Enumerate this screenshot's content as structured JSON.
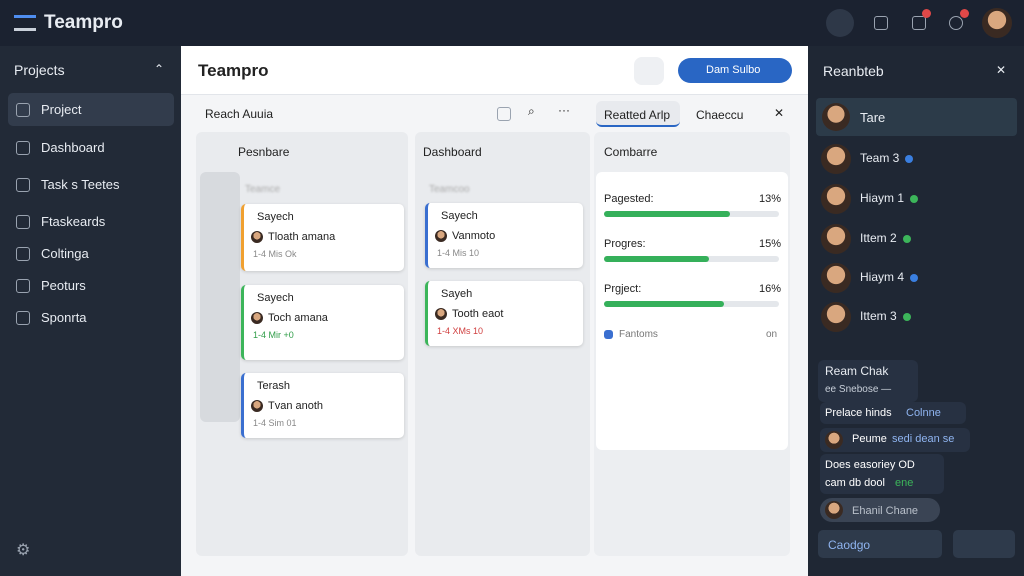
{
  "top_bar": {
    "brand": "Teampro"
  },
  "sidebar": {
    "title": "Projects",
    "items": [
      "Project",
      "Dashboard",
      "Task s Teetes",
      "Ftaskeards",
      "Coltinga",
      "Peoturs",
      "Sponrta"
    ]
  },
  "main": {
    "title": "Teampro",
    "action_button": "Dam Sulbo",
    "subtitle": "Reach Auuia",
    "board": {
      "columns": [
        {
          "title": "Pesnbare",
          "header": "Teamce",
          "cards": [
            {
              "title": "Sayech",
              "assignee": "Tloath amana",
              "meta": "1-4 Mis Ok"
            },
            {
              "title": "Sayech",
              "assignee": "Toch amana",
              "meta": "1-4 Mir +0"
            },
            {
              "title": "Terash",
              "assignee": "Tvan anoth",
              "meta": "1-4 Sim 01"
            }
          ]
        },
        {
          "title": "Dashboard",
          "header": "Teamcoo",
          "cards": [
            {
              "title": "Sayech",
              "assignee": "Vanmoto",
              "meta": "1-4 Mis 10"
            },
            {
              "title": "Sayeh",
              "assignee": "Tooth eaot",
              "meta": "1-4 XMs 10"
            }
          ]
        }
      ]
    },
    "side_tabs": [
      "Reatted Arlp",
      "Chaeccu"
    ],
    "progress": {
      "title": "Combarre",
      "rows": [
        {
          "label": "Pagested:",
          "value": "13%"
        },
        {
          "label": "Progres:",
          "value": "15%"
        },
        {
          "label": "Prgject:",
          "value": "16%"
        }
      ],
      "legend": "Fantoms",
      "legend_value": "on"
    }
  },
  "right_panel": {
    "title": "Reanbteb",
    "team": "Tare",
    "members": [
      "Team 3",
      "Hiaym 1",
      "Ittem 2",
      "Hiaym 4",
      "Ittem 3"
    ],
    "chat": {
      "title": "Ream Chak",
      "lines": [
        "ee Snebose —",
        "Prelace hinds",
        "Colnne",
        "Peume",
        "sedi dean se",
        "Does easoriey OD",
        "cam db dool",
        "ene",
        "Ehanil Chane"
      ]
    },
    "input": "Caodgo"
  }
}
